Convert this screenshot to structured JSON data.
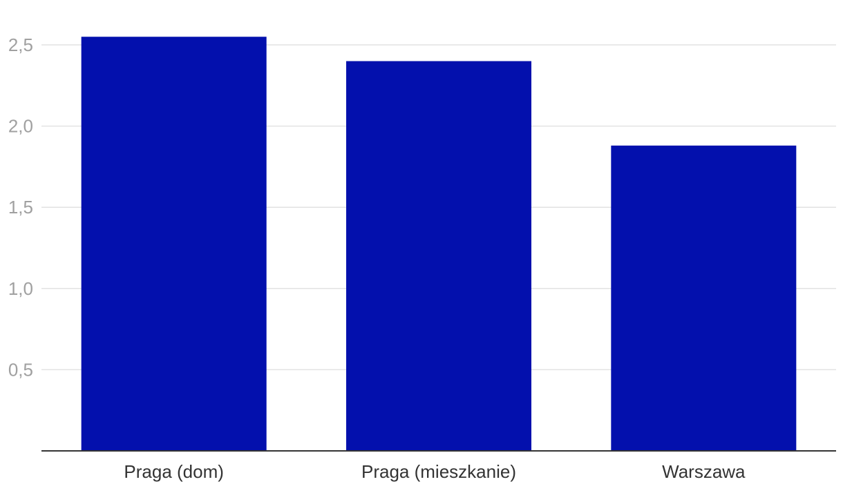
{
  "chart_data": {
    "type": "bar",
    "title": "",
    "xlabel": "",
    "ylabel": "",
    "categories": [
      "Praga (dom)",
      "Praga (mieszkanie)",
      "Warszawa"
    ],
    "series": [
      {
        "values": [
          2.55,
          2.4,
          1.88
        ]
      }
    ],
    "ylim": [
      0,
      2.5
    ],
    "yticks": [
      0.5,
      1.0,
      1.5,
      2.0,
      2.5
    ],
    "ytick_labels": [
      "0,5",
      "1,0",
      "1,5",
      "2,0",
      "2,5"
    ],
    "grid": true,
    "bar_color": "#0310ad"
  }
}
